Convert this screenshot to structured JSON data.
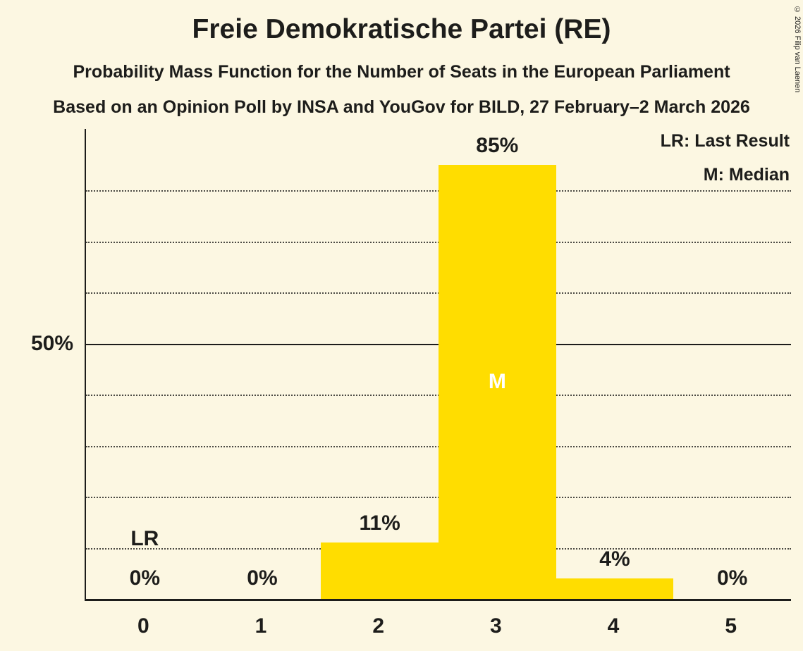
{
  "title": "Freie Demokratische Partei (RE)",
  "subtitle1": "Probability Mass Function for the Number of Seats in the European Parliament",
  "subtitle2": "Based on an Opinion Poll by INSA and YouGov for BILD, 27 February–2 March 2026",
  "copyright": "© 2026 Filip van Laenen",
  "legend": {
    "lr": "LR: Last Result",
    "m": "M: Median"
  },
  "colors": {
    "background": "#FCF7E2",
    "bar": "#FFDD00",
    "text": "#1D1D1B",
    "median_text": "#FFFFFF"
  },
  "chart_data": {
    "type": "bar",
    "title": "Freie Demokratische Partei (RE)",
    "categories": [
      "0",
      "1",
      "2",
      "3",
      "4",
      "5"
    ],
    "values": [
      0,
      0,
      11,
      85,
      4,
      0
    ],
    "value_labels": [
      "0%",
      "0%",
      "11%",
      "85%",
      "4%",
      "0%"
    ],
    "median_category_index": 3,
    "median_label": "M",
    "last_result_category_index": 0,
    "last_result_label": "LR",
    "y_axis_tick_label": "50%",
    "y_solid_line_value": 50,
    "y_max": 92,
    "grid_dotted_values": [
      10,
      20,
      30,
      40,
      60,
      70,
      80
    ],
    "grid": true,
    "legend_position": "top-right",
    "xlabel": "",
    "ylabel": ""
  }
}
